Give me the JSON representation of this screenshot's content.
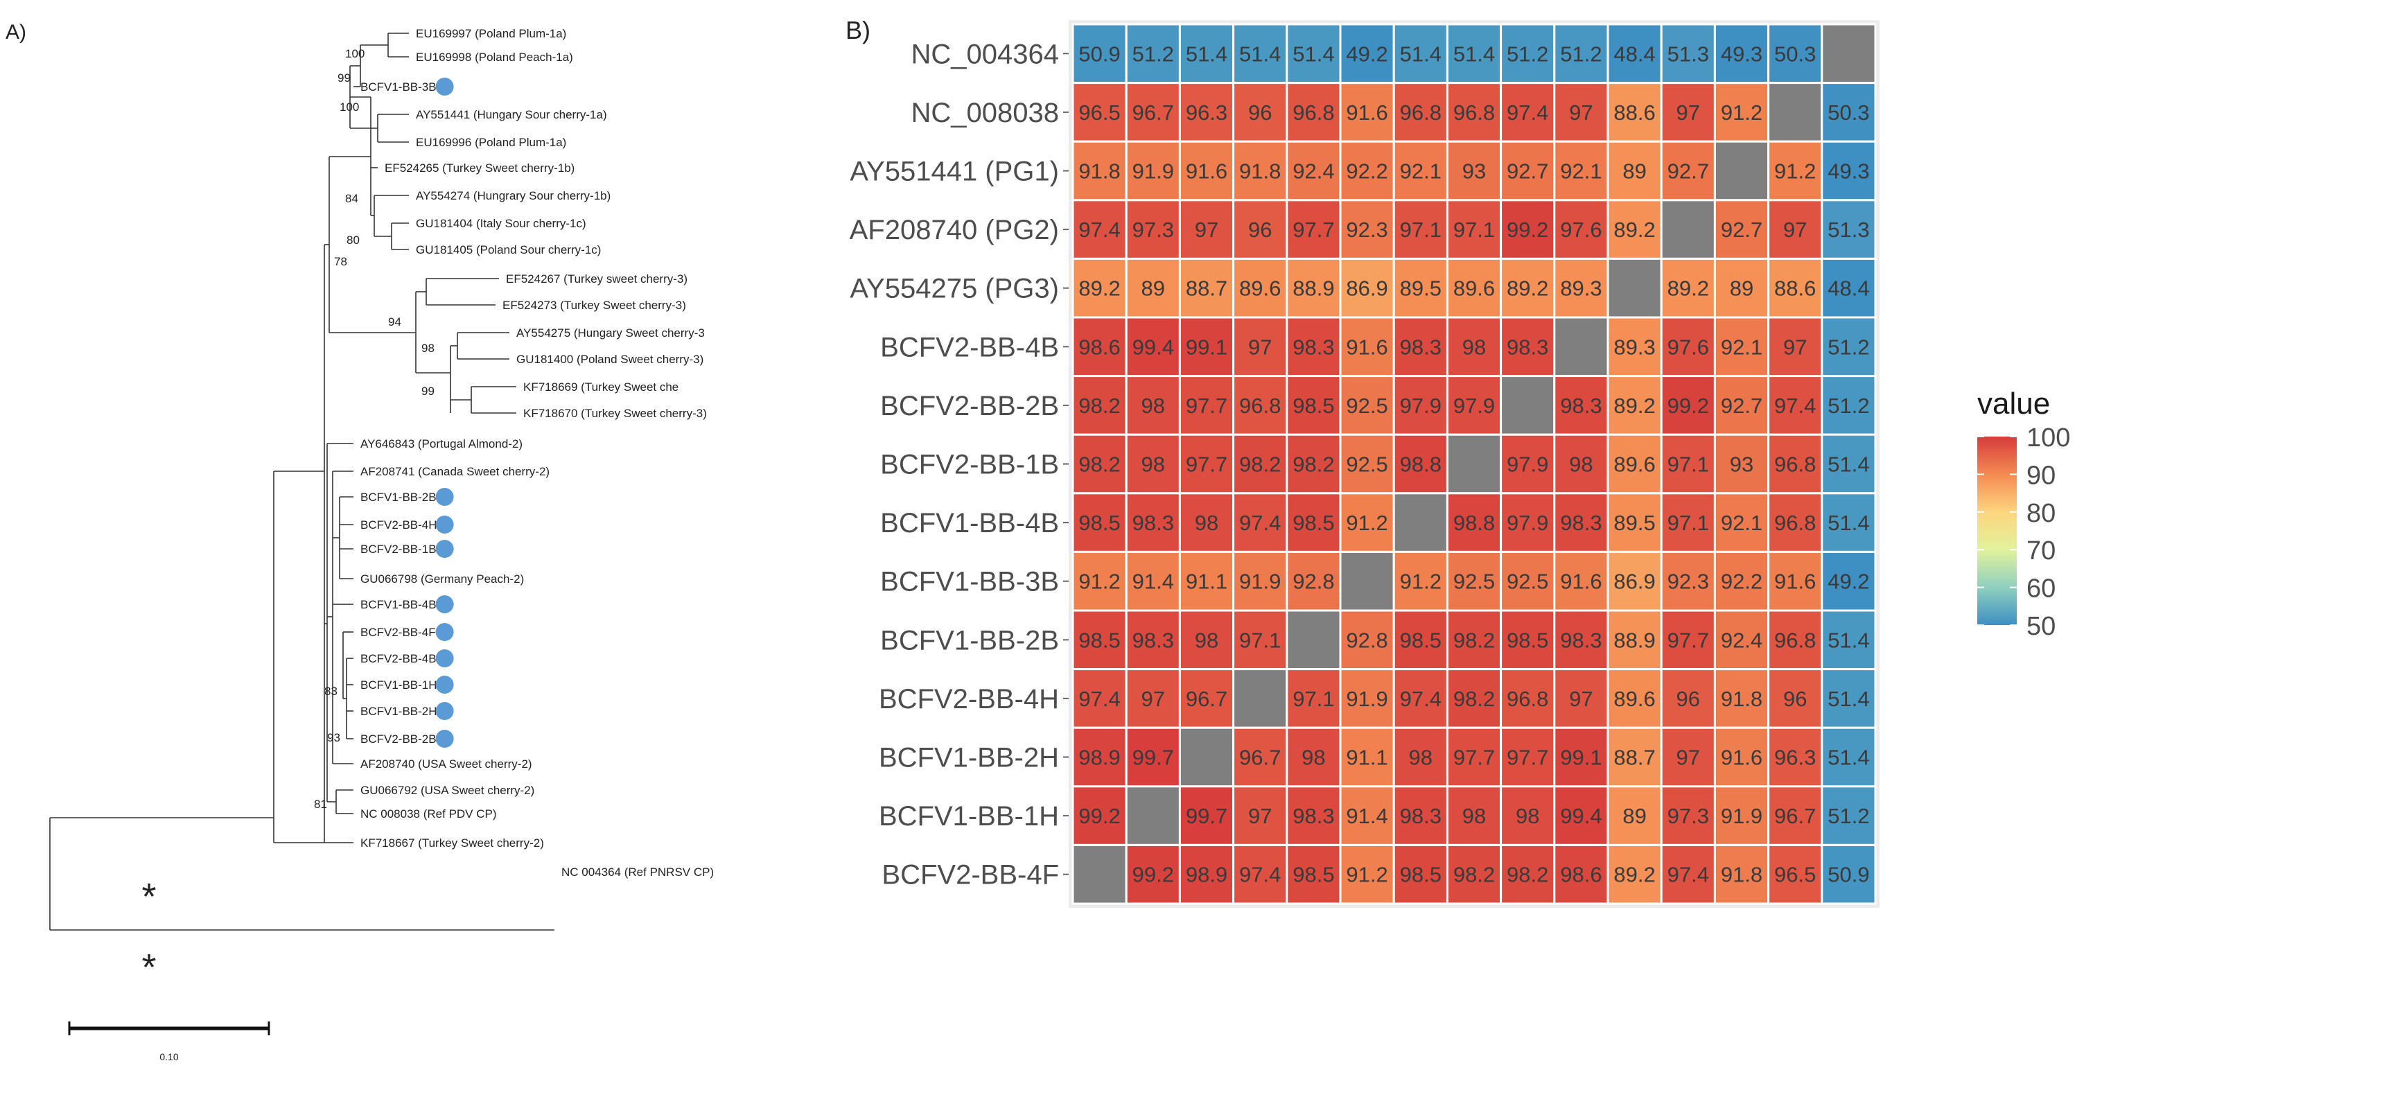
{
  "panel_a": {
    "label": "A)",
    "scale_bar_label": "0.10",
    "asterisk": "*",
    "leaves": [
      {
        "label": "EU169997 (Poland Plum-1a)",
        "marked": false
      },
      {
        "label": "EU169998 (Poland Peach-1a)",
        "marked": false
      },
      {
        "label": "BCFV1-BB-3B",
        "marked": true
      },
      {
        "label": "AY551441 (Hungary Sour cherry-1a)",
        "marked": false
      },
      {
        "label": "EU169996 (Poland Plum-1a)",
        "marked": false
      },
      {
        "label": "EF524265 (Turkey Sweet cherry-1b)",
        "marked": false
      },
      {
        "label": "AY554274 (Hungrary Sour cherry-1b)",
        "marked": false
      },
      {
        "label": "GU181404 (Italy Sour cherry-1c)",
        "marked": false
      },
      {
        "label": "GU181405 (Poland Sour cherry-1c)",
        "marked": false
      },
      {
        "label": "EF524267 (Turkey sweet cherry-3)",
        "marked": false
      },
      {
        "label": "EF524273 (Turkey Sweet cherry-3)",
        "marked": false
      },
      {
        "label": "AY554275 (Hungary Sweet cherry-3",
        "marked": false
      },
      {
        "label": "GU181400 (Poland Sweet cherry-3)",
        "marked": false
      },
      {
        "label": "KF718669 (Turkey Sweet che",
        "marked": false
      },
      {
        "label": "KF718670 (Turkey Sweet cherry-3)",
        "marked": false
      },
      {
        "label": "AY646843 (Portugal Almond-2)",
        "marked": false
      },
      {
        "label": "AF208741 (Canada Sweet cherry-2)",
        "marked": false
      },
      {
        "label": "BCFV1-BB-2B",
        "marked": true
      },
      {
        "label": "BCFV2-BB-4H",
        "marked": true
      },
      {
        "label": "BCFV2-BB-1B",
        "marked": true
      },
      {
        "label": "GU066798 (Germany Peach-2)",
        "marked": false
      },
      {
        "label": "BCFV1-BB-4B",
        "marked": true
      },
      {
        "label": "BCFV2-BB-4F",
        "marked": true
      },
      {
        "label": "BCFV2-BB-4B",
        "marked": true
      },
      {
        "label": "BCFV1-BB-1H",
        "marked": true
      },
      {
        "label": "BCFV1-BB-2H",
        "marked": true
      },
      {
        "label": "BCFV2-BB-2B",
        "marked": true
      },
      {
        "label": "AF208740 (USA Sweet cherry-2)",
        "marked": false
      },
      {
        "label": "GU066792 (USA Sweet cherry-2)",
        "marked": false
      },
      {
        "label": "NC 008038 (Ref PDV CP)",
        "marked": false
      },
      {
        "label": "KF718667 (Turkey Sweet cherry-2)",
        "marked": false
      },
      {
        "label": "NC 004364 (Ref PNRSV CP)",
        "marked": false
      }
    ],
    "bootstrap_labels": [
      "100",
      "99",
      "100",
      "84",
      "80",
      "78",
      "94",
      "98",
      "99",
      "83",
      "93",
      "81"
    ]
  },
  "panel_b": {
    "label": "B)",
    "legend_title": "value",
    "legend_ticks": [
      "100",
      "90",
      "80",
      "70",
      "60",
      "50"
    ]
  },
  "chart_data": {
    "type": "heatmap",
    "title": "",
    "legend_title": "value",
    "color_scale": {
      "min": 50,
      "max": 100,
      "stops": [
        "#3e8fc2",
        "#8fcfbf",
        "#e2f29c",
        "#fdd57f",
        "#f48a52",
        "#d63c3b"
      ],
      "na_color": "#7f7f7f",
      "background": "#ebebeb"
    },
    "rows": [
      "NC_004364",
      "NC_008038",
      "AY551441 (PG1)",
      "AF208740 (PG2)",
      "AY554275 (PG3)",
      "BCFV2-BB-4B",
      "BCFV2-BB-2B",
      "BCFV2-BB-1B",
      "BCFV1-BB-4B",
      "BCFV1-BB-3B",
      "BCFV1-BB-2B",
      "BCFV2-BB-4H",
      "BCFV1-BB-2H",
      "BCFV1-BB-1H",
      "BCFV2-BB-4F"
    ],
    "values": [
      [
        50.9,
        51.2,
        51.4,
        51.4,
        51.4,
        49.2,
        51.4,
        51.4,
        51.2,
        51.2,
        48.4,
        51.3,
        49.3,
        50.3,
        null
      ],
      [
        96.5,
        96.7,
        96.3,
        96,
        96.8,
        91.6,
        96.8,
        96.8,
        97.4,
        97,
        88.6,
        97,
        91.2,
        null,
        50.3
      ],
      [
        91.8,
        91.9,
        91.6,
        91.8,
        92.4,
        92.2,
        92.1,
        93,
        92.7,
        92.1,
        89,
        92.7,
        null,
        91.2,
        49.3
      ],
      [
        97.4,
        97.3,
        97,
        96,
        97.7,
        92.3,
        97.1,
        97.1,
        99.2,
        97.6,
        89.2,
        null,
        92.7,
        97,
        51.3
      ],
      [
        89.2,
        89,
        88.7,
        89.6,
        88.9,
        86.9,
        89.5,
        89.6,
        89.2,
        89.3,
        null,
        89.2,
        89,
        88.6,
        48.4
      ],
      [
        98.6,
        99.4,
        99.1,
        97,
        98.3,
        91.6,
        98.3,
        98,
        98.3,
        null,
        89.3,
        97.6,
        92.1,
        97,
        51.2
      ],
      [
        98.2,
        98,
        97.7,
        96.8,
        98.5,
        92.5,
        97.9,
        97.9,
        null,
        98.3,
        89.2,
        99.2,
        92.7,
        97.4,
        51.2
      ],
      [
        98.2,
        98,
        97.7,
        98.2,
        98.2,
        92.5,
        98.8,
        null,
        97.9,
        98,
        89.6,
        97.1,
        93,
        96.8,
        51.4
      ],
      [
        98.5,
        98.3,
        98,
        97.4,
        98.5,
        91.2,
        null,
        98.8,
        97.9,
        98.3,
        89.5,
        97.1,
        92.1,
        96.8,
        51.4
      ],
      [
        91.2,
        91.4,
        91.1,
        91.9,
        92.8,
        null,
        91.2,
        92.5,
        92.5,
        91.6,
        86.9,
        92.3,
        92.2,
        91.6,
        49.2
      ],
      [
        98.5,
        98.3,
        98,
        97.1,
        null,
        92.8,
        98.5,
        98.2,
        98.5,
        98.3,
        88.9,
        97.7,
        92.4,
        96.8,
        51.4
      ],
      [
        97.4,
        97,
        96.7,
        null,
        97.1,
        91.9,
        97.4,
        98.2,
        96.8,
        97,
        89.6,
        96,
        91.8,
        96,
        51.4
      ],
      [
        98.9,
        99.7,
        null,
        96.7,
        98,
        91.1,
        98,
        97.7,
        97.7,
        99.1,
        88.7,
        97,
        91.6,
        96.3,
        51.4
      ],
      [
        99.2,
        null,
        99.7,
        97,
        98.3,
        91.4,
        98.3,
        98,
        98,
        99.4,
        89,
        97.3,
        91.9,
        96.7,
        51.2
      ],
      [
        null,
        99.2,
        98.9,
        97.4,
        98.5,
        91.2,
        98.5,
        98.2,
        98.2,
        98.6,
        89.2,
        97.4,
        91.8,
        96.5,
        50.9
      ]
    ]
  }
}
